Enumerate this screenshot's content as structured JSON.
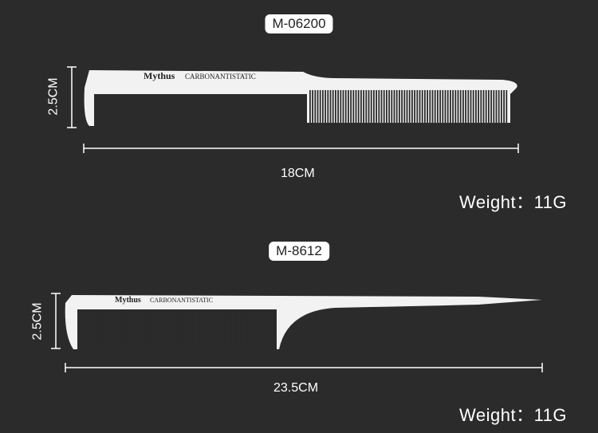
{
  "combs": [
    {
      "model": "M-06200",
      "brand": "Mythus",
      "material_text": "CARBONANTISTATIC",
      "height": "2.5CM",
      "length": "18CM",
      "weight": "Weight：11G"
    },
    {
      "model": "M-8612",
      "brand": "Mythus",
      "material_text": "CARBONANTISTATIC",
      "height": "2.5CM",
      "length": "23.5CM",
      "weight": "Weight：11G"
    }
  ],
  "colors": {
    "background": "#2b2b2b",
    "comb": "#f2f2f2",
    "dimension_line": "#ffffff"
  }
}
